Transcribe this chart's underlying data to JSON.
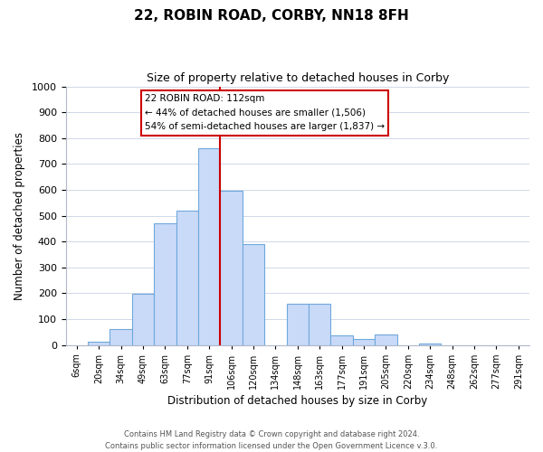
{
  "title": "22, ROBIN ROAD, CORBY, NN18 8FH",
  "subtitle": "Size of property relative to detached houses in Corby",
  "xlabel": "Distribution of detached houses by size in Corby",
  "ylabel": "Number of detached properties",
  "bar_labels": [
    "6sqm",
    "20sqm",
    "34sqm",
    "49sqm",
    "63sqm",
    "77sqm",
    "91sqm",
    "106sqm",
    "120sqm",
    "134sqm",
    "148sqm",
    "163sqm",
    "177sqm",
    "191sqm",
    "205sqm",
    "220sqm",
    "234sqm",
    "248sqm",
    "262sqm",
    "277sqm",
    "291sqm"
  ],
  "bar_values": [
    0,
    13,
    62,
    196,
    470,
    518,
    760,
    595,
    390,
    0,
    160,
    158,
    38,
    22,
    42,
    0,
    5,
    0,
    0,
    0,
    0
  ],
  "bar_color": "#c9daf8",
  "bar_edge_color": "#6fa8dc",
  "vline_color": "#cc0000",
  "ylim": [
    0,
    1000
  ],
  "yticks": [
    0,
    100,
    200,
    300,
    400,
    500,
    600,
    700,
    800,
    900,
    1000
  ],
  "annotation_title": "22 ROBIN ROAD: 112sqm",
  "annotation_line1": "← 44% of detached houses are smaller (1,506)",
  "annotation_line2": "54% of semi-detached houses are larger (1,837) →",
  "annotation_box_color": "#ffffff",
  "annotation_box_edge": "#cc0000",
  "footer1": "Contains HM Land Registry data © Crown copyright and database right 2024.",
  "footer2": "Contains public sector information licensed under the Open Government Licence v.3.0.",
  "background_color": "#ffffff",
  "grid_color": "#d0d8e8"
}
